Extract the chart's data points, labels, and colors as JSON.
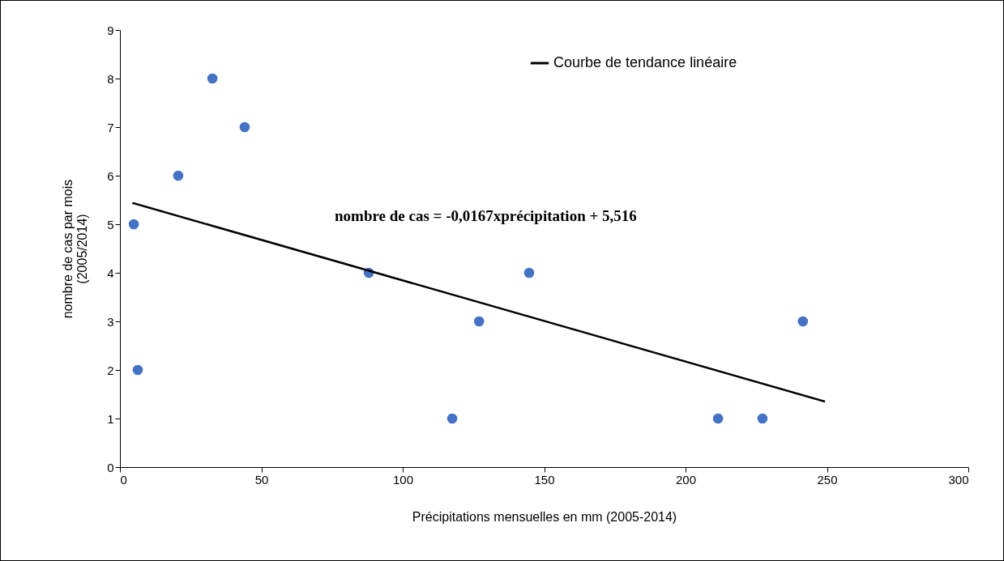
{
  "chart_data": {
    "type": "scatter",
    "xlabel": "Précipitations mensuelles en mm (2005-2014)",
    "ylabel": "nombre de cas par mois (2005/2014)",
    "xlim": [
      0,
      300
    ],
    "xticks": [
      0,
      50,
      100,
      150,
      200,
      250,
      300
    ],
    "ylim": [
      0,
      9
    ],
    "yticks": [
      0,
      1,
      2,
      3,
      4,
      5,
      6,
      7,
      8,
      9
    ],
    "grid": false,
    "legend": "top right",
    "annotations": [
      "nombre de cas = -0,0167xprécipitation + 5,516"
    ],
    "series": [
      {
        "marker": "circle",
        "color": "#4472c4",
        "x": [
          4.9,
          6.3,
          20.6,
          32.7,
          44.1,
          88,
          117.5,
          127,
          144.7,
          211.5,
          227.2,
          241.5
        ],
        "values": [
          5,
          2,
          6,
          8,
          7,
          4,
          1,
          3,
          4,
          1,
          1,
          3
        ]
      },
      {
        "type": "line",
        "name": "Courbe de tendance linéaire",
        "color": "#000000",
        "x": [
          4.4,
          249.3
        ],
        "values": [
          5.44,
          1.35
        ]
      }
    ]
  }
}
